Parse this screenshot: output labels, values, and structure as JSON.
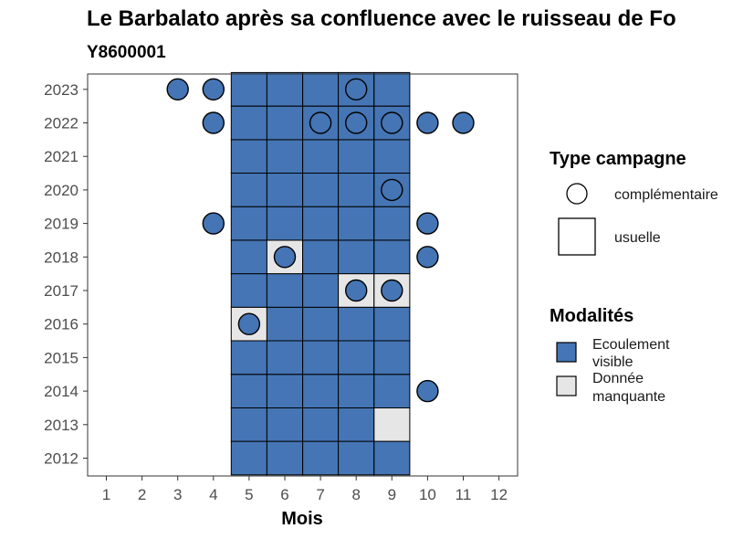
{
  "chart_data": {
    "type": "heatmap",
    "title": "Le Barbalato après sa confluence avec le ruisseau de Fo",
    "subtitle": "Y8600001",
    "xlabel": "Mois",
    "ylabel": "",
    "x_ticks": [
      "1",
      "2",
      "3",
      "4",
      "5",
      "6",
      "7",
      "8",
      "9",
      "10",
      "11",
      "12"
    ],
    "y_ticks": [
      "2012",
      "2013",
      "2014",
      "2015",
      "2016",
      "2017",
      "2018",
      "2019",
      "2020",
      "2021",
      "2022",
      "2023"
    ],
    "tiles": [
      {
        "year": 2012,
        "months": [
          5,
          6,
          7,
          8,
          9
        ],
        "status": "Ecoulement visible"
      },
      {
        "year": 2013,
        "months": [
          5,
          6,
          7,
          8
        ],
        "status": "Ecoulement visible"
      },
      {
        "year": 2013,
        "months": [
          9
        ],
        "status": "Donnée manquante"
      },
      {
        "year": 2014,
        "months": [
          5,
          6,
          7,
          8,
          9
        ],
        "status": "Ecoulement visible"
      },
      {
        "year": 2015,
        "months": [
          5,
          6,
          7,
          8,
          9
        ],
        "status": "Ecoulement visible"
      },
      {
        "year": 2016,
        "months": [
          5
        ],
        "status": "Donnée manquante"
      },
      {
        "year": 2016,
        "months": [
          6,
          7,
          8,
          9
        ],
        "status": "Ecoulement visible"
      },
      {
        "year": 2017,
        "months": [
          5,
          6,
          7
        ],
        "status": "Ecoulement visible"
      },
      {
        "year": 2017,
        "months": [
          8,
          9
        ],
        "status": "Donnée manquante"
      },
      {
        "year": 2018,
        "months": [
          5,
          7,
          8,
          9
        ],
        "status": "Ecoulement visible"
      },
      {
        "year": 2018,
        "months": [
          6
        ],
        "status": "Donnée manquante"
      },
      {
        "year": 2019,
        "months": [
          5,
          6,
          7,
          8,
          9
        ],
        "status": "Ecoulement visible"
      },
      {
        "year": 2020,
        "months": [
          5,
          6,
          7,
          8,
          9
        ],
        "status": "Ecoulement visible"
      },
      {
        "year": 2021,
        "months": [
          5,
          6,
          7,
          8,
          9
        ],
        "status": "Ecoulement visible"
      },
      {
        "year": 2022,
        "months": [
          5,
          6,
          7,
          8,
          9
        ],
        "status": "Ecoulement visible"
      },
      {
        "year": 2023,
        "months": [
          5,
          6,
          7,
          8,
          9
        ],
        "status": "Ecoulement visible"
      }
    ],
    "complementary_points": [
      {
        "year": 2023,
        "month": 3,
        "status": "Ecoulement visible"
      },
      {
        "year": 2023,
        "month": 4,
        "status": "Ecoulement visible"
      },
      {
        "year": 2023,
        "month": 8,
        "status": "Ecoulement visible"
      },
      {
        "year": 2022,
        "month": 4,
        "status": "Ecoulement visible"
      },
      {
        "year": 2022,
        "month": 7,
        "status": "Ecoulement visible"
      },
      {
        "year": 2022,
        "month": 8,
        "status": "Ecoulement visible"
      },
      {
        "year": 2022,
        "month": 9,
        "status": "Ecoulement visible"
      },
      {
        "year": 2022,
        "month": 10,
        "status": "Ecoulement visible"
      },
      {
        "year": 2022,
        "month": 11,
        "status": "Ecoulement visible"
      },
      {
        "year": 2020,
        "month": 9,
        "status": "Ecoulement visible"
      },
      {
        "year": 2019,
        "month": 4,
        "status": "Ecoulement visible"
      },
      {
        "year": 2019,
        "month": 10,
        "status": "Ecoulement visible"
      },
      {
        "year": 2018,
        "month": 6,
        "status": "Ecoulement visible"
      },
      {
        "year": 2018,
        "month": 10,
        "status": "Ecoulement visible"
      },
      {
        "year": 2017,
        "month": 8,
        "status": "Ecoulement visible"
      },
      {
        "year": 2017,
        "month": 9,
        "status": "Ecoulement visible"
      },
      {
        "year": 2016,
        "month": 5,
        "status": "Ecoulement visible"
      },
      {
        "year": 2014,
        "month": 10,
        "status": "Ecoulement visible"
      }
    ],
    "legend_type": {
      "title": "Type campagne",
      "items": [
        "complémentaire",
        "usuelle"
      ]
    },
    "legend_modalites": {
      "title": "Modalités",
      "items": [
        {
          "lines": [
            "Ecoulement",
            "visible"
          ],
          "color": "#4575b4"
        },
        {
          "lines": [
            "Donnée",
            "manquante"
          ],
          "color": "#e6e6e6"
        }
      ]
    },
    "colors": {
      "Ecoulement visible": "#4575b4",
      "Donnée manquante": "#e6e6e6"
    },
    "legend_position": "right",
    "grid": false
  }
}
